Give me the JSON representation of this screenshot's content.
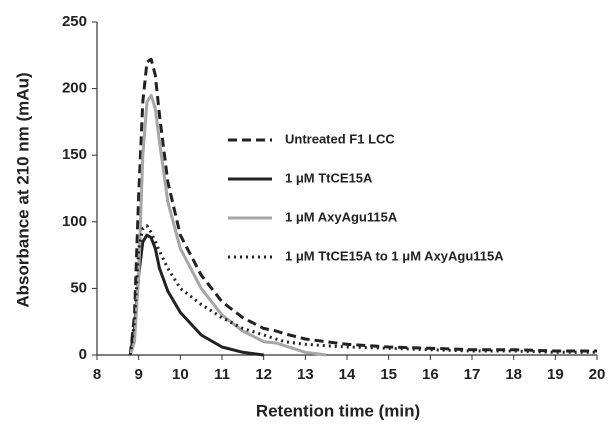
{
  "chart_data": {
    "type": "line",
    "xlabel": "Retention time (min)",
    "ylabel": "Absorbance at 210 nm (mAu)",
    "x": [
      8.8,
      8.9,
      9.0,
      9.1,
      9.2,
      9.3,
      9.4,
      9.5,
      9.7,
      10,
      10.5,
      11,
      11.5,
      12,
      12.3,
      12.5,
      13,
      13.5,
      14,
      15,
      16,
      17,
      18,
      19,
      20
    ],
    "series": [
      {
        "name": "Untreated F1 LCC",
        "color": "#222222",
        "dash": "dashed",
        "values": [
          0,
          30,
          120,
          190,
          220,
          222,
          210,
          180,
          130,
          90,
          60,
          40,
          28,
          20,
          18,
          16,
          12,
          10,
          8,
          6,
          5,
          4,
          4,
          3,
          3
        ]
      },
      {
        "name": "1 μM TtCE15A",
        "color": "#222222",
        "dash": "solid",
        "values": [
          0,
          20,
          60,
          85,
          90,
          88,
          80,
          65,
          48,
          32,
          15,
          6,
          2,
          0,
          null,
          null,
          null,
          null,
          null,
          null,
          null,
          null,
          null,
          null,
          null
        ]
      },
      {
        "name": "1 μM AxyAgu115A",
        "color": "#a6a6a6",
        "dash": "solid",
        "values": [
          0,
          10,
          60,
          150,
          190,
          195,
          185,
          160,
          115,
          80,
          50,
          30,
          18,
          10,
          9,
          7,
          2,
          0,
          null,
          null,
          null,
          null,
          null,
          null,
          null
        ]
      },
      {
        "name": "1 μM TtCE15A to 1 μM AxyAgu115A",
        "color": "#222222",
        "dash": "dotted",
        "values": [
          0,
          25,
          80,
          95,
          97,
          92,
          85,
          78,
          65,
          50,
          38,
          28,
          20,
          15,
          12,
          10,
          8,
          7,
          6,
          5,
          4,
          3,
          3,
          2,
          2
        ]
      }
    ],
    "xlim": [
      8,
      20
    ],
    "xticks": [
      8,
      9,
      10,
      11,
      12,
      13,
      14,
      15,
      16,
      17,
      18,
      19,
      20
    ],
    "ylim": [
      0,
      250
    ],
    "yticks": [
      0,
      50,
      100,
      150,
      200,
      250
    ],
    "grid": false
  }
}
